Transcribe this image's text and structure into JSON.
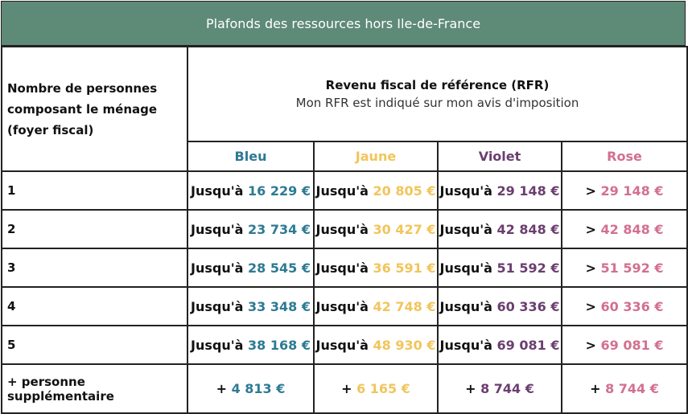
{
  "title": "Plafonds des ressources hors Ile-de-France",
  "header": {
    "household_label": "Nombre de personnes composant le ménage (foyer fiscal)",
    "rfr_title": "Revenu fiscal de référence (RFR)",
    "rfr_subtitle": "Mon RFR est indiqué sur mon avis d'imposition"
  },
  "categories": [
    "Bleu",
    "Jaune",
    "Violet",
    "Rose"
  ],
  "colors": {
    "bleu": "#2d7a93",
    "jaune": "#f1c55a",
    "violet": "#6a3e6f",
    "rose": "#d2708f"
  },
  "rows": [
    {
      "label": "1",
      "cells": [
        {
          "prefix": "Jusqu'à ",
          "value": "16 229 €"
        },
        {
          "prefix": "Jusqu'à ",
          "value": "20 805 €"
        },
        {
          "prefix": "Jusqu'à ",
          "value": "29 148 €"
        },
        {
          "prefix": "> ",
          "value": "29 148 €"
        }
      ]
    },
    {
      "label": "2",
      "cells": [
        {
          "prefix": "Jusqu'à ",
          "value": "23 734 €"
        },
        {
          "prefix": "Jusqu'à ",
          "value": "30 427 €"
        },
        {
          "prefix": "Jusqu'à ",
          "value": "42 848 €"
        },
        {
          "prefix": "> ",
          "value": "42 848 €"
        }
      ]
    },
    {
      "label": "3",
      "cells": [
        {
          "prefix": "Jusqu'à ",
          "value": "28 545 €"
        },
        {
          "prefix": "Jusqu'à ",
          "value": "36 591 €"
        },
        {
          "prefix": "Jusqu'à ",
          "value": "51 592 €"
        },
        {
          "prefix": "> ",
          "value": "51 592 €"
        }
      ]
    },
    {
      "label": "4",
      "cells": [
        {
          "prefix": "Jusqu'à ",
          "value": "33 348 €"
        },
        {
          "prefix": "Jusqu'à ",
          "value": "42 748 €"
        },
        {
          "prefix": "Jusqu'à ",
          "value": "60 336 €"
        },
        {
          "prefix": "> ",
          "value": "60 336 €"
        }
      ]
    },
    {
      "label": "5",
      "cells": [
        {
          "prefix": "Jusqu'à ",
          "value": "38 168 €"
        },
        {
          "prefix": "Jusqu'à ",
          "value": "48 930 €"
        },
        {
          "prefix": "Jusqu'à ",
          "value": "69 081 €"
        },
        {
          "prefix": "> ",
          "value": "69 081 €"
        }
      ]
    },
    {
      "label": "+ personne supplémentaire",
      "cells": [
        {
          "prefix": "+ ",
          "value": "4 813 €"
        },
        {
          "prefix": "+ ",
          "value": "6 165 €"
        },
        {
          "prefix": "+ ",
          "value": "8 744 €"
        },
        {
          "prefix": "+ ",
          "value": "8 744 €"
        }
      ]
    }
  ]
}
